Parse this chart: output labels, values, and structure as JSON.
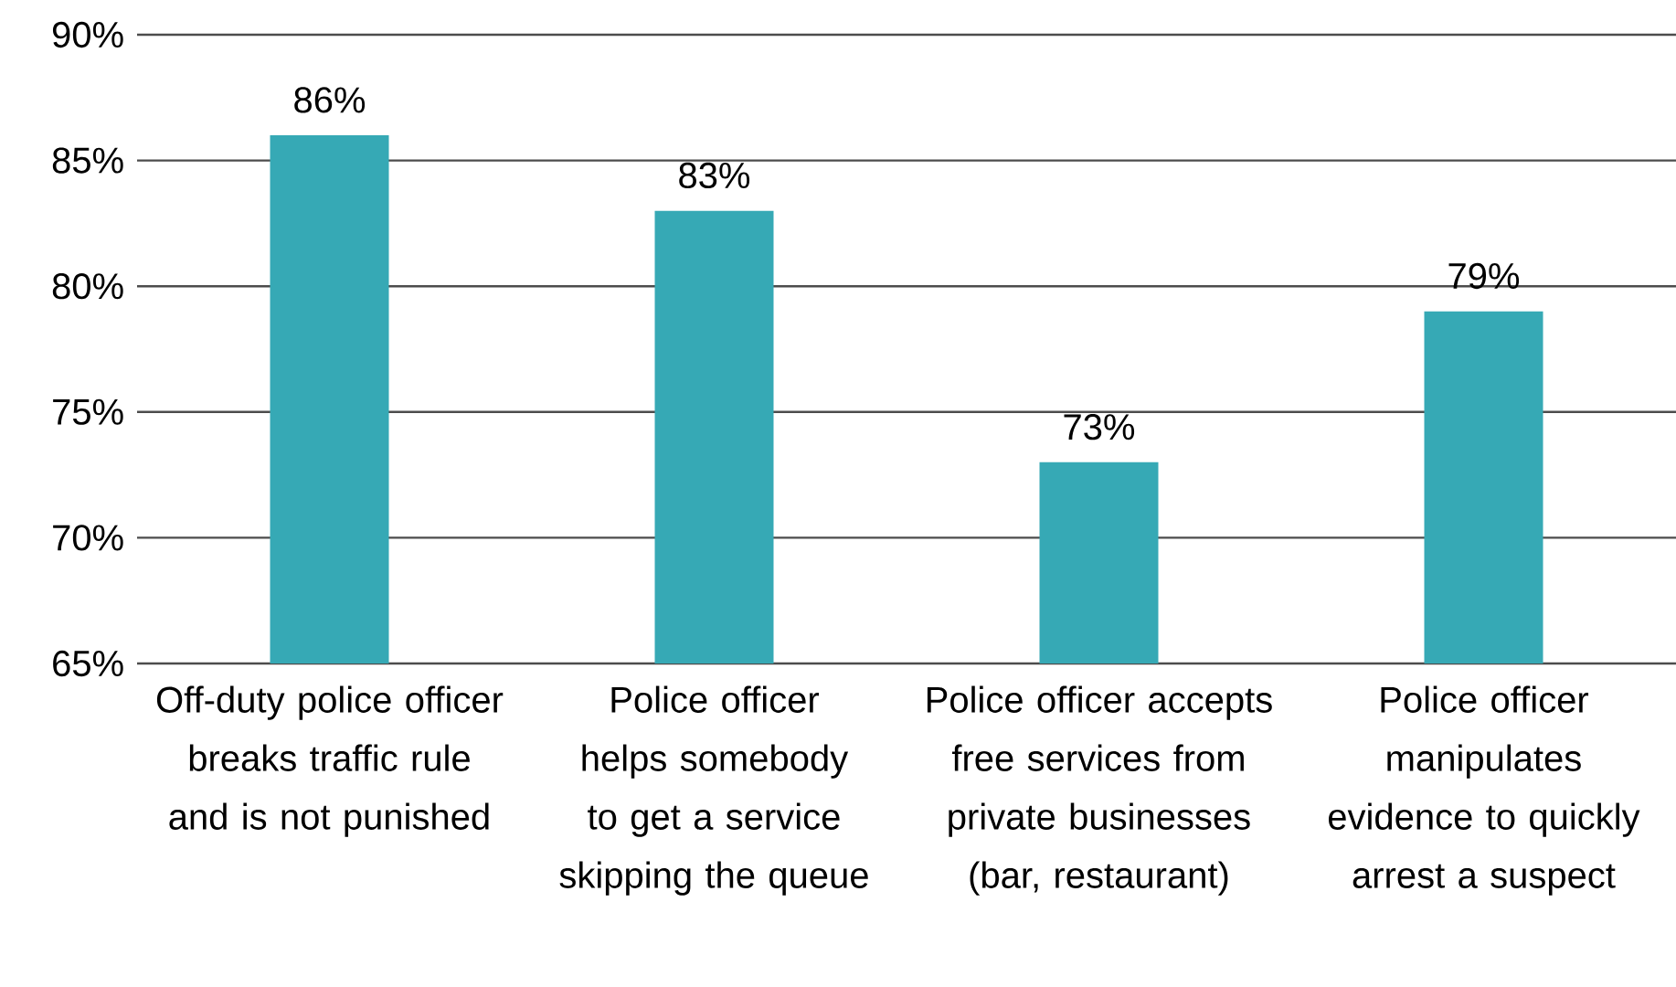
{
  "chart_data": {
    "type": "bar",
    "categories": [
      "Off-duty police officer breaks traffic rule and is not punished",
      "Police officer helps somebody to get a service skipping the queue",
      "Police officer accepts free services from private businesses (bar, restaurant)",
      "Police officer manipulates evidence to quickly arrest a suspect"
    ],
    "values": [
      86,
      83,
      73,
      79
    ],
    "value_labels": [
      "86%",
      "83%",
      "73%",
      "79%"
    ],
    "color": "#36a9b5",
    "ylim": [
      65,
      90
    ],
    "yticks": [
      {
        "value": 65,
        "label": "65%"
      },
      {
        "value": 70,
        "label": "70%"
      },
      {
        "value": 75,
        "label": "75%"
      },
      {
        "value": 80,
        "label": "80%"
      },
      {
        "value": 85,
        "label": "85%"
      },
      {
        "value": 90,
        "label": "90%"
      }
    ],
    "grid": "y"
  }
}
